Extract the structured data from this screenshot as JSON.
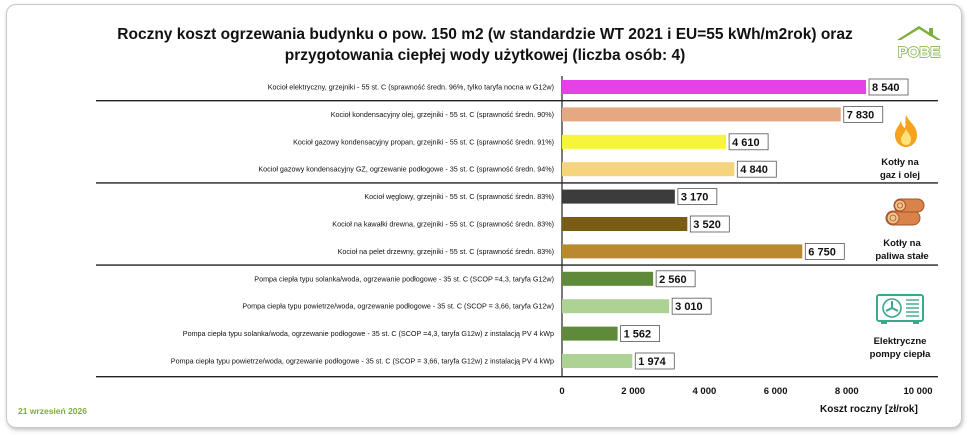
{
  "title_line1": "Roczny koszt ogrzewania budynku o pow. 150 m2 (w standardzie WT 2021 i EU=55 kWh/m2rok) oraz",
  "title_line2": "przygotowania ciepłej wody użytkowej (liczba osób: 4)",
  "logo_text": "POBE",
  "date": "21 wrzesień 2026",
  "groups": [
    {
      "label_line1": "Kotły na",
      "label_line2": "gaz i olej",
      "icon": "flame-icon"
    },
    {
      "label_line1": "Kotły na",
      "label_line2": "paliwa stałe",
      "icon": "logs-icon"
    },
    {
      "label_line1": "Elektryczne",
      "label_line2": "pompy ciepła",
      "icon": "heat-pump-icon"
    }
  ],
  "chart_data": {
    "type": "bar",
    "orientation": "horizontal",
    "xlabel": "Koszt roczny [zł/rok]",
    "xlim": [
      0,
      10000
    ],
    "xticks": [
      0,
      2000,
      4000,
      6000,
      8000,
      10000
    ],
    "xtick_labels": [
      "0",
      "2 000",
      "4 000",
      "6 000",
      "8 000",
      "10 000"
    ],
    "categories": [
      "Kocioł  elektryczny,  grzejniki - 55 st. C  (sprawność średn. 96%, tylko taryfa nocna w G12w)",
      "Kocioł  kondensacyjny olej,  grzejniki - 55 st. C (sprawność średn. 90%)",
      "Kocioł gazowy kondensacyjny propan, grzejniki - 55 st. C (sprawność średn. 91%)",
      "Kocioł gazowy kondensacyjny GZ, ogrzewanie podłogowe - 35 st. C (sprawność średn. 94%)",
      "Kocioł węglowy,  grzejniki - 55 st. C (sprawność średn. 83%)",
      "Kocioł na kawałki drewna, grzejniki - 55 st. C (sprawność średn. 83%)",
      "Kocioł na pelet drzewny, grzejniki - 55 st. C (sprawność średn. 83%)",
      "Pompa ciepła typu solanka/woda, ogrzewanie podłogowe - 35 st. C (SCOP =4,3, taryfa G12w)",
      "Pompa ciepła typu powietrze/woda, ogrzewanie podłogowe - 35 st. C (SCOP = 3,66, taryfa G12w)",
      "Pompa ciepła typu solanka/woda, ogrzewanie podłogowe - 35 st. C (SCOP =4,3, taryfa G12w) z instalacją PV 4 kWp",
      "Pompa ciepła typu powietrze/woda, ogrzewanie podłogowe - 35 st. C (SCOP = 3,66, taryfa G12w) z instalacją PV 4 kWp"
    ],
    "values": [
      8540,
      7830,
      4610,
      4840,
      3170,
      3520,
      6750,
      2560,
      3010,
      1562,
      1974
    ],
    "value_labels": [
      "8 540",
      "7 830",
      "4 610",
      "4 840",
      "3 170",
      "3 520",
      "6 750",
      "2 560",
      "3 010",
      "1 562",
      "1 974"
    ],
    "colors": [
      "#e641e6",
      "#e6a882",
      "#f6f53c",
      "#f6d47c",
      "#3c3c3c",
      "#7a5c14",
      "#b8892e",
      "#5f8a3a",
      "#aed294",
      "#5f8a3a",
      "#aed294"
    ],
    "group_separators_after": [
      0,
      3,
      6
    ],
    "grid": false
  }
}
